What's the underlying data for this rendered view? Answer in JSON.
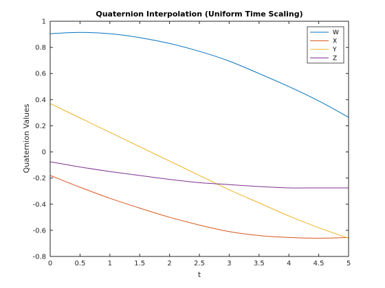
{
  "chart_data": {
    "type": "line",
    "title": "Quaternion Interpolation (Uniform Time Scaling)",
    "xlabel": "t",
    "ylabel": "Quaternion Values",
    "xlim": [
      0,
      5
    ],
    "ylim": [
      -0.8,
      1
    ],
    "xticks": [
      "0",
      "0.5",
      "1",
      "1.5",
      "2",
      "2.5",
      "3",
      "3.5",
      "4",
      "4.5",
      "5"
    ],
    "yticks": [
      "-0.8",
      "-0.6",
      "-0.4",
      "-0.2",
      "0",
      "0.2",
      "0.4",
      "0.6",
      "0.8",
      "1"
    ],
    "grid": false,
    "legend_position": "top-right",
    "x": [
      0,
      0.5,
      1,
      1.5,
      2,
      2.5,
      3,
      3.5,
      4,
      4.5,
      5
    ],
    "series": [
      {
        "name": "W",
        "color": "#0072BD",
        "values": [
          0.905,
          0.915,
          0.905,
          0.875,
          0.83,
          0.77,
          0.695,
          0.6,
          0.5,
          0.39,
          0.265
        ]
      },
      {
        "name": "X",
        "color": "#D95319",
        "values": [
          -0.18,
          -0.27,
          -0.355,
          -0.43,
          -0.5,
          -0.56,
          -0.61,
          -0.64,
          -0.655,
          -0.66,
          -0.655
        ]
      },
      {
        "name": "Y",
        "color": "#EDB120",
        "values": [
          0.37,
          0.26,
          0.15,
          0.04,
          -0.07,
          -0.18,
          -0.29,
          -0.39,
          -0.49,
          -0.58,
          -0.66
        ]
      },
      {
        "name": "Z",
        "color": "#7E2F8E",
        "values": [
          -0.075,
          -0.115,
          -0.15,
          -0.18,
          -0.21,
          -0.235,
          -0.25,
          -0.265,
          -0.275,
          -0.275,
          -0.275
        ]
      }
    ]
  }
}
